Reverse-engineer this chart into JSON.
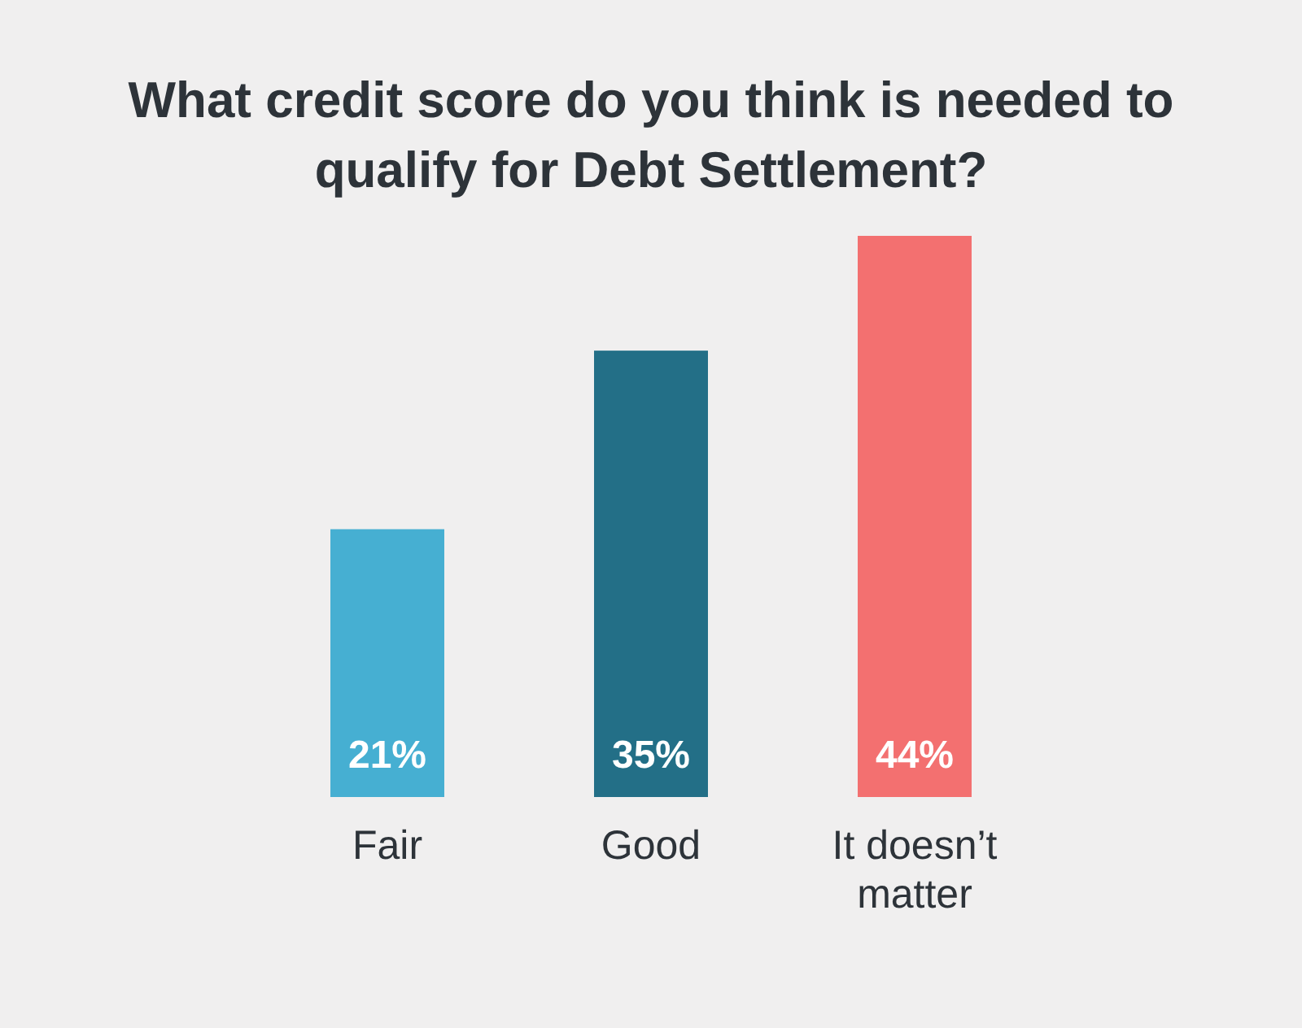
{
  "chart_data": {
    "type": "bar",
    "title": "What credit score do you think is needed to qualify for Debt Settlement?",
    "categories": [
      "Fair",
      "Good",
      "It doesn’t matter"
    ],
    "values": [
      21,
      35,
      44
    ],
    "value_labels": [
      "21%",
      "35%",
      "44%"
    ],
    "colors": [
      "#46afd2",
      "#236f87",
      "#f37070"
    ],
    "grid": false,
    "legend": false
  }
}
